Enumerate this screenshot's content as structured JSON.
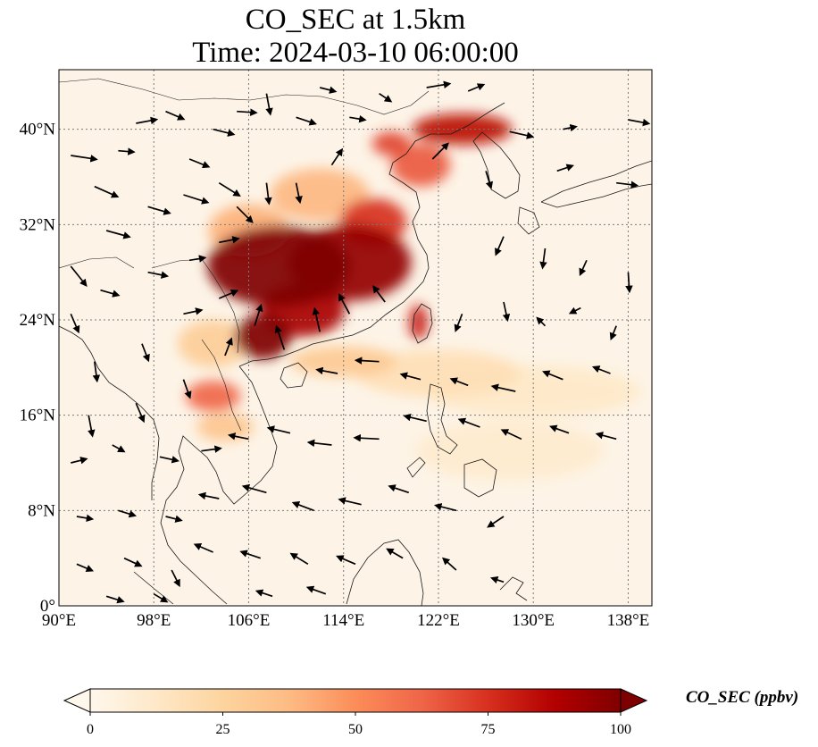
{
  "title": {
    "line1": "CO_SEC at 1.5km",
    "line2": "Time: 2024-03-10 06:00:00"
  },
  "colors": {
    "background": "#fdf4e7",
    "low": "#fdd49e",
    "mid": "#ef6548",
    "high": "#7f0000",
    "coast": "#1a1a1a",
    "grid": "#7a7a7a",
    "vector": "#000000"
  },
  "chart_data": {
    "type": "heatmap",
    "variable": "CO_SEC",
    "units": "ppbv",
    "level": "1.5km",
    "time": "2024-03-10 06:00:00",
    "xlim": [
      90,
      140
    ],
    "ylim": [
      0,
      45
    ],
    "colormap": "OrRd",
    "colorbar": {
      "label": "CO_SEC (ppbv)",
      "range": [
        0,
        100
      ],
      "extend": "both",
      "ticks": [
        0,
        25,
        50,
        75,
        100
      ]
    },
    "x_ticks": [
      {
        "value": 90,
        "label": "90°E"
      },
      {
        "value": 98,
        "label": "98°E"
      },
      {
        "value": 106,
        "label": "106°E"
      },
      {
        "value": 114,
        "label": "114°E"
      },
      {
        "value": 122,
        "label": "122°E"
      },
      {
        "value": 130,
        "label": "130°E"
      },
      {
        "value": 138,
        "label": "138°E"
      }
    ],
    "y_ticks": [
      {
        "value": 0,
        "label": "0°"
      },
      {
        "value": 8,
        "label": "8°N"
      },
      {
        "value": 16,
        "label": "16°N"
      },
      {
        "value": 24,
        "label": "24°N"
      },
      {
        "value": 32,
        "label": "32°N"
      },
      {
        "value": 40,
        "label": "40°N"
      }
    ],
    "plumes": [
      {
        "lon": 108.5,
        "lat": 28.5,
        "rlon": 6.0,
        "rlat": 3.4,
        "value": 100
      },
      {
        "lon": 114.5,
        "lat": 28.8,
        "rlon": 5.2,
        "rlat": 3.2,
        "value": 95
      },
      {
        "lon": 107.2,
        "lat": 22.6,
        "rlon": 2.4,
        "rlat": 1.9,
        "value": 100
      },
      {
        "lon": 110.5,
        "lat": 24.8,
        "rlon": 3.6,
        "rlat": 2.2,
        "value": 90
      },
      {
        "lon": 116.5,
        "lat": 32.2,
        "rlon": 2.8,
        "rlat": 2.0,
        "value": 75
      },
      {
        "lon": 120.5,
        "lat": 37.0,
        "rlon": 2.5,
        "rlat": 1.8,
        "value": 65
      },
      {
        "lon": 124.0,
        "lat": 40.0,
        "rlon": 4.2,
        "rlat": 1.3,
        "value": 85
      },
      {
        "lon": 118.0,
        "lat": 38.8,
        "rlon": 1.6,
        "rlat": 1.0,
        "value": 70
      },
      {
        "lon": 120.3,
        "lat": 23.8,
        "rlon": 0.8,
        "rlat": 1.5,
        "value": 80
      },
      {
        "lon": 103.0,
        "lat": 17.6,
        "rlon": 2.3,
        "rlat": 1.3,
        "value": 62
      },
      {
        "lon": 104.0,
        "lat": 15.0,
        "rlon": 2.4,
        "rlat": 1.2,
        "value": 32
      },
      {
        "lon": 106.0,
        "lat": 31.5,
        "rlon": 3.4,
        "rlat": 2.2,
        "value": 40
      },
      {
        "lon": 112.0,
        "lat": 34.5,
        "rlon": 4.2,
        "rlat": 2.2,
        "value": 38
      },
      {
        "lon": 114.0,
        "lat": 20.5,
        "rlon": 4.5,
        "rlat": 1.3,
        "value": 30
      },
      {
        "lon": 122.0,
        "lat": 19.5,
        "rlon": 7.0,
        "rlat": 2.0,
        "value": 18
      },
      {
        "lon": 130.0,
        "lat": 18.0,
        "rlon": 9.0,
        "rlat": 2.2,
        "value": 12
      },
      {
        "lon": 128.0,
        "lat": 13.0,
        "rlon": 8.0,
        "rlat": 2.5,
        "value": 10
      },
      {
        "lon": 103.0,
        "lat": 22.0,
        "rlon": 3.0,
        "rlat": 2.0,
        "value": 28
      }
    ],
    "wind_vectors": [
      {
        "lon": 91.0,
        "lat": 37.8,
        "u": 2.0,
        "v": -0.3
      },
      {
        "lon": 93.0,
        "lat": 35.2,
        "u": 1.8,
        "v": -0.8
      },
      {
        "lon": 95.0,
        "lat": 38.2,
        "u": 1.2,
        "v": -0.1
      },
      {
        "lon": 96.5,
        "lat": 40.5,
        "u": 1.6,
        "v": 0.3
      },
      {
        "lon": 99.0,
        "lat": 41.5,
        "u": 1.4,
        "v": -0.6
      },
      {
        "lon": 101.0,
        "lat": 37.5,
        "u": 1.5,
        "v": -0.6
      },
      {
        "lon": 103.0,
        "lat": 40.0,
        "u": 1.6,
        "v": -0.4
      },
      {
        "lon": 105.0,
        "lat": 41.5,
        "u": 1.5,
        "v": -0.1
      },
      {
        "lon": 107.5,
        "lat": 43.0,
        "u": 0.3,
        "v": -1.6
      },
      {
        "lon": 110.0,
        "lat": 41.0,
        "u": 1.5,
        "v": -0.5
      },
      {
        "lon": 112.0,
        "lat": 43.5,
        "u": 1.2,
        "v": -0.3
      },
      {
        "lon": 114.5,
        "lat": 41.0,
        "u": 1.2,
        "v": -0.2
      },
      {
        "lon": 117.0,
        "lat": 43.0,
        "u": 0.9,
        "v": -0.6
      },
      {
        "lon": 121.0,
        "lat": 43.5,
        "u": 1.8,
        "v": 0.3
      },
      {
        "lon": 124.5,
        "lat": 43.2,
        "u": 1.2,
        "v": 0.5
      },
      {
        "lon": 128.0,
        "lat": 39.8,
        "u": 1.8,
        "v": -0.4
      },
      {
        "lon": 132.5,
        "lat": 40.0,
        "u": 1.0,
        "v": 0.2
      },
      {
        "lon": 138.0,
        "lat": 40.8,
        "u": 1.6,
        "v": -0.3
      },
      {
        "lon": 94.0,
        "lat": 31.5,
        "u": 1.8,
        "v": -0.5
      },
      {
        "lon": 97.5,
        "lat": 33.5,
        "u": 1.7,
        "v": -0.5
      },
      {
        "lon": 100.5,
        "lat": 34.5,
        "u": 1.9,
        "v": -0.6
      },
      {
        "lon": 103.5,
        "lat": 35.5,
        "u": 1.6,
        "v": -1.0
      },
      {
        "lon": 105.0,
        "lat": 33.5,
        "u": 1.2,
        "v": -1.2
      },
      {
        "lon": 107.5,
        "lat": 35.5,
        "u": 0.2,
        "v": -1.6
      },
      {
        "lon": 110.0,
        "lat": 35.5,
        "u": 0.3,
        "v": -1.5
      },
      {
        "lon": 113.0,
        "lat": 37.0,
        "u": 0.8,
        "v": 1.2
      },
      {
        "lon": 121.5,
        "lat": 37.5,
        "u": 1.2,
        "v": 1.2
      },
      {
        "lon": 126.0,
        "lat": 36.5,
        "u": 0.4,
        "v": -1.3
      },
      {
        "lon": 132.0,
        "lat": 36.5,
        "u": 1.2,
        "v": 0.4
      },
      {
        "lon": 137.0,
        "lat": 35.5,
        "u": 1.6,
        "v": -0.2
      },
      {
        "lon": 91.0,
        "lat": 28.5,
        "u": 1.2,
        "v": -1.5
      },
      {
        "lon": 93.5,
        "lat": 26.5,
        "u": 1.4,
        "v": -0.4
      },
      {
        "lon": 97.5,
        "lat": 28.0,
        "u": 1.5,
        "v": -0.3
      },
      {
        "lon": 101.0,
        "lat": 29.0,
        "u": 1.2,
        "v": 0.2
      },
      {
        "lon": 103.5,
        "lat": 30.5,
        "u": 1.5,
        "v": 0.3
      },
      {
        "lon": 127.5,
        "lat": 31.0,
        "u": -0.6,
        "v": -1.4
      },
      {
        "lon": 131.0,
        "lat": 30.0,
        "u": -0.2,
        "v": -1.5
      },
      {
        "lon": 134.5,
        "lat": 29.0,
        "u": -0.5,
        "v": -1.1
      },
      {
        "lon": 138.0,
        "lat": 28.0,
        "u": 0.1,
        "v": -1.5
      },
      {
        "lon": 91.0,
        "lat": 24.5,
        "u": 0.6,
        "v": -1.4
      },
      {
        "lon": 93.0,
        "lat": 20.5,
        "u": 0.2,
        "v": -1.5
      },
      {
        "lon": 97.0,
        "lat": 22.0,
        "u": 0.5,
        "v": -1.3
      },
      {
        "lon": 100.5,
        "lat": 24.5,
        "u": 1.4,
        "v": 0.3
      },
      {
        "lon": 103.5,
        "lat": 25.8,
        "u": 1.4,
        "v": 0.6
      },
      {
        "lon": 106.5,
        "lat": 23.5,
        "u": 0.5,
        "v": 1.6
      },
      {
        "lon": 109.0,
        "lat": 21.5,
        "u": -0.6,
        "v": 1.8
      },
      {
        "lon": 112.0,
        "lat": 23.0,
        "u": -0.4,
        "v": 1.8
      },
      {
        "lon": 114.5,
        "lat": 24.5,
        "u": -0.8,
        "v": 1.5
      },
      {
        "lon": 117.5,
        "lat": 25.5,
        "u": -0.9,
        "v": 1.2
      },
      {
        "lon": 124.0,
        "lat": 24.5,
        "u": -0.5,
        "v": -1.3
      },
      {
        "lon": 127.5,
        "lat": 25.5,
        "u": 0.3,
        "v": -1.4
      },
      {
        "lon": 131.0,
        "lat": 23.5,
        "u": -0.6,
        "v": 0.6
      },
      {
        "lon": 134.0,
        "lat": 25.0,
        "u": -0.8,
        "v": -0.4
      },
      {
        "lon": 137.0,
        "lat": 23.5,
        "u": -0.4,
        "v": -1.0
      },
      {
        "lon": 92.5,
        "lat": 16.0,
        "u": 0.3,
        "v": -1.6
      },
      {
        "lon": 96.5,
        "lat": 17.0,
        "u": 0.6,
        "v": -1.4
      },
      {
        "lon": 100.5,
        "lat": 19.0,
        "u": 0.5,
        "v": -1.4
      },
      {
        "lon": 104.0,
        "lat": 21.0,
        "u": 0.5,
        "v": 1.3
      },
      {
        "lon": 113.5,
        "lat": 19.5,
        "u": -1.6,
        "v": 0.3
      },
      {
        "lon": 117.0,
        "lat": 20.5,
        "u": -1.8,
        "v": 0.1
      },
      {
        "lon": 120.5,
        "lat": 19.0,
        "u": -1.5,
        "v": 0.4
      },
      {
        "lon": 124.5,
        "lat": 18.5,
        "u": -1.3,
        "v": 0.5
      },
      {
        "lon": 128.5,
        "lat": 18.0,
        "u": -1.8,
        "v": 0.4
      },
      {
        "lon": 132.5,
        "lat": 19.0,
        "u": -1.5,
        "v": 0.6
      },
      {
        "lon": 136.5,
        "lat": 19.5,
        "u": -1.3,
        "v": 0.5
      },
      {
        "lon": 91.0,
        "lat": 12.0,
        "u": 1.2,
        "v": 0.3
      },
      {
        "lon": 94.5,
        "lat": 13.5,
        "u": 0.9,
        "v": -0.5
      },
      {
        "lon": 98.5,
        "lat": 12.5,
        "u": 1.4,
        "v": -0.3
      },
      {
        "lon": 102.0,
        "lat": 13.0,
        "u": 1.5,
        "v": 0.2
      },
      {
        "lon": 106.0,
        "lat": 14.0,
        "u": -1.5,
        "v": 0.3
      },
      {
        "lon": 109.5,
        "lat": 14.5,
        "u": -1.7,
        "v": 0.4
      },
      {
        "lon": 113.0,
        "lat": 13.5,
        "u": -1.8,
        "v": 0.2
      },
      {
        "lon": 117.0,
        "lat": 14.0,
        "u": -1.9,
        "v": 0.1
      },
      {
        "lon": 121.0,
        "lat": 15.5,
        "u": -1.7,
        "v": 0.4
      },
      {
        "lon": 125.5,
        "lat": 15.0,
        "u": -1.6,
        "v": 0.6
      },
      {
        "lon": 129.0,
        "lat": 14.0,
        "u": -1.5,
        "v": 0.7
      },
      {
        "lon": 133.0,
        "lat": 14.5,
        "u": -1.4,
        "v": 0.5
      },
      {
        "lon": 137.0,
        "lat": 14.0,
        "u": -1.5,
        "v": 0.4
      },
      {
        "lon": 91.5,
        "lat": 7.5,
        "u": 1.2,
        "v": -0.2
      },
      {
        "lon": 95.0,
        "lat": 8.0,
        "u": 1.3,
        "v": -0.4
      },
      {
        "lon": 99.0,
        "lat": 7.5,
        "u": 1.2,
        "v": -0.3
      },
      {
        "lon": 103.5,
        "lat": 9.0,
        "u": -1.5,
        "v": 0.3
      },
      {
        "lon": 107.5,
        "lat": 9.5,
        "u": -1.8,
        "v": 0.5
      },
      {
        "lon": 111.5,
        "lat": 8.0,
        "u": -1.6,
        "v": 0.6
      },
      {
        "lon": 115.5,
        "lat": 8.5,
        "u": -1.7,
        "v": 0.4
      },
      {
        "lon": 119.5,
        "lat": 9.5,
        "u": -1.5,
        "v": 0.5
      },
      {
        "lon": 123.5,
        "lat": 8.0,
        "u": -1.6,
        "v": 0.4
      },
      {
        "lon": 127.5,
        "lat": 7.5,
        "u": -1.2,
        "v": -0.8
      },
      {
        "lon": 91.5,
        "lat": 3.5,
        "u": 1.2,
        "v": -0.5
      },
      {
        "lon": 95.5,
        "lat": 4.0,
        "u": 1.3,
        "v": -0.6
      },
      {
        "lon": 99.5,
        "lat": 3.0,
        "u": 0.6,
        "v": -1.2
      },
      {
        "lon": 103.0,
        "lat": 4.5,
        "u": -1.4,
        "v": 0.6
      },
      {
        "lon": 107.0,
        "lat": 4.0,
        "u": -1.5,
        "v": 0.5
      },
      {
        "lon": 111.0,
        "lat": 3.5,
        "u": -1.3,
        "v": 0.8
      },
      {
        "lon": 115.0,
        "lat": 3.5,
        "u": -1.4,
        "v": 0.6
      },
      {
        "lon": 119.0,
        "lat": 4.0,
        "u": -1.2,
        "v": 0.7
      },
      {
        "lon": 123.5,
        "lat": 3.0,
        "u": -1.0,
        "v": 0.9
      },
      {
        "lon": 127.5,
        "lat": 2.0,
        "u": -0.9,
        "v": 0.3
      },
      {
        "lon": 94.0,
        "lat": 0.8,
        "u": 1.3,
        "v": -0.4
      },
      {
        "lon": 98.0,
        "lat": 1.0,
        "u": 1.0,
        "v": -0.6
      },
      {
        "lon": 108.0,
        "lat": 0.8,
        "u": -1.2,
        "v": 0.4
      },
      {
        "lon": 112.5,
        "lat": 1.0,
        "u": -1.4,
        "v": 0.5
      }
    ]
  }
}
